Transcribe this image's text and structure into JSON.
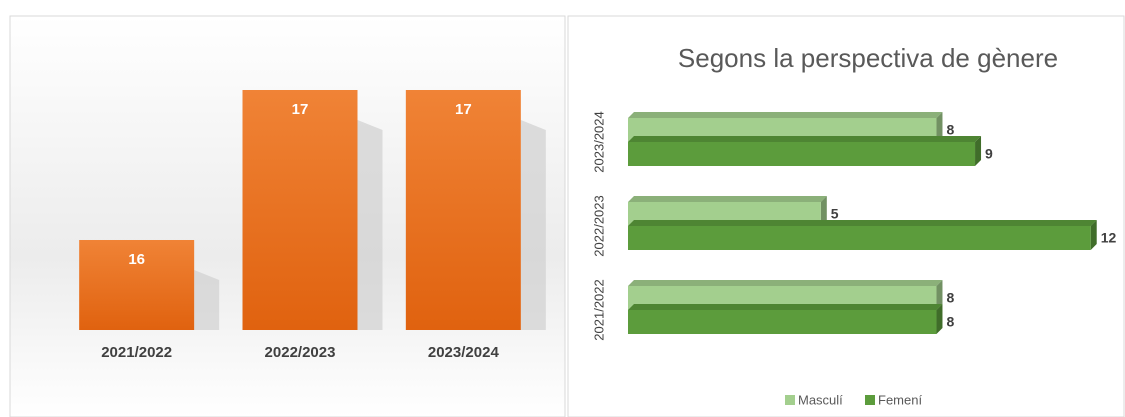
{
  "chart_data": [
    {
      "type": "bar",
      "categories": [
        "2021/2022",
        "2022/2023",
        "2023/2024"
      ],
      "values": [
        16,
        17,
        17
      ],
      "color": "#ec7a2e",
      "ylim": [
        15.4,
        17
      ]
    },
    {
      "type": "hbar",
      "title": "Segons la perspectiva de gènere",
      "categories": [
        "2021/2022",
        "2022/2023",
        "2023/2024"
      ],
      "series": [
        {
          "name": "Masculí",
          "color": "#a3cf8e",
          "values": [
            8,
            5,
            8
          ]
        },
        {
          "name": "Femení",
          "color": "#5c9c3c",
          "values": [
            8,
            12,
            9
          ]
        }
      ],
      "xlim": [
        0,
        12.5
      ],
      "legend": "bottom"
    }
  ]
}
